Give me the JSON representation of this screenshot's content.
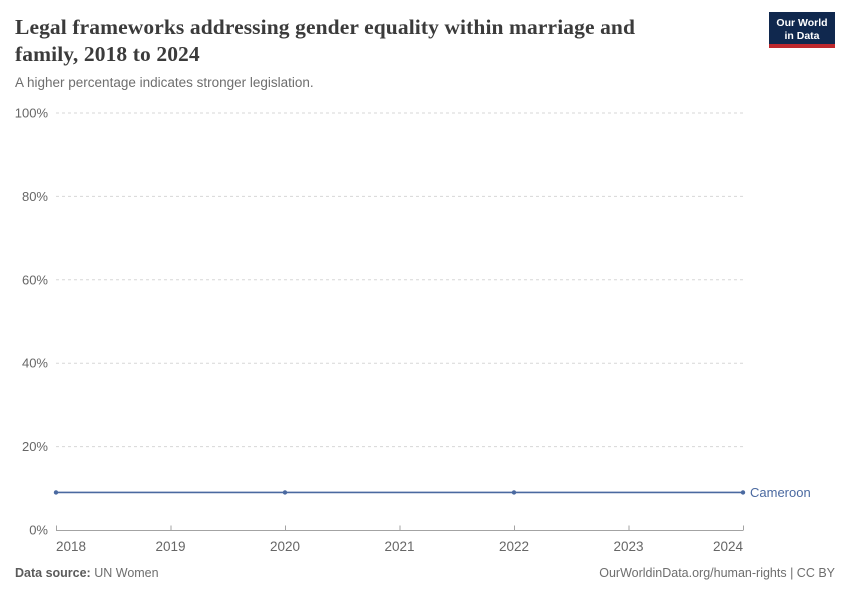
{
  "header": {
    "title_lines": [
      "Legal frameworks addressing gender equality within marriage and",
      "family, 2018 to 2024"
    ],
    "subtitle": "A higher percentage indicates stronger legislation.",
    "logo": {
      "line1": "Our World",
      "line2": "in Data"
    }
  },
  "chart_data": {
    "type": "line",
    "title": "Legal frameworks addressing gender equality within marriage and family, 2018 to 2024",
    "subtitle": "A higher percentage indicates stronger legislation.",
    "x": [
      2018,
      2020,
      2022,
      2024
    ],
    "series": [
      {
        "name": "Cameroon",
        "values": [
          9,
          9,
          9,
          9
        ],
        "color": "#4a69a0"
      }
    ],
    "xlabel": "",
    "ylabel": "",
    "xlim": [
      2018,
      2024
    ],
    "ylim": [
      0,
      100
    ],
    "xticks": [
      2018,
      2019,
      2020,
      2021,
      2022,
      2023,
      2024
    ],
    "yticks": [
      {
        "value": 0,
        "label": "0%"
      },
      {
        "value": 20,
        "label": "20%"
      },
      {
        "value": 40,
        "label": "40%"
      },
      {
        "value": 60,
        "label": "60%"
      },
      {
        "value": 80,
        "label": "80%"
      },
      {
        "value": 100,
        "label": "100%"
      }
    ],
    "grid": "horizontal-dashed",
    "legend": "line-end-label",
    "colors": {
      "series_blue": "#4a69a0",
      "gridline": "#d7d7d7",
      "axis": "#a3a3a3",
      "tick_label": "#666666"
    }
  },
  "footer": {
    "source_label": "Data source:",
    "source_value": "UN Women",
    "link": "OurWorldinData.org/human-rights | CC BY"
  }
}
